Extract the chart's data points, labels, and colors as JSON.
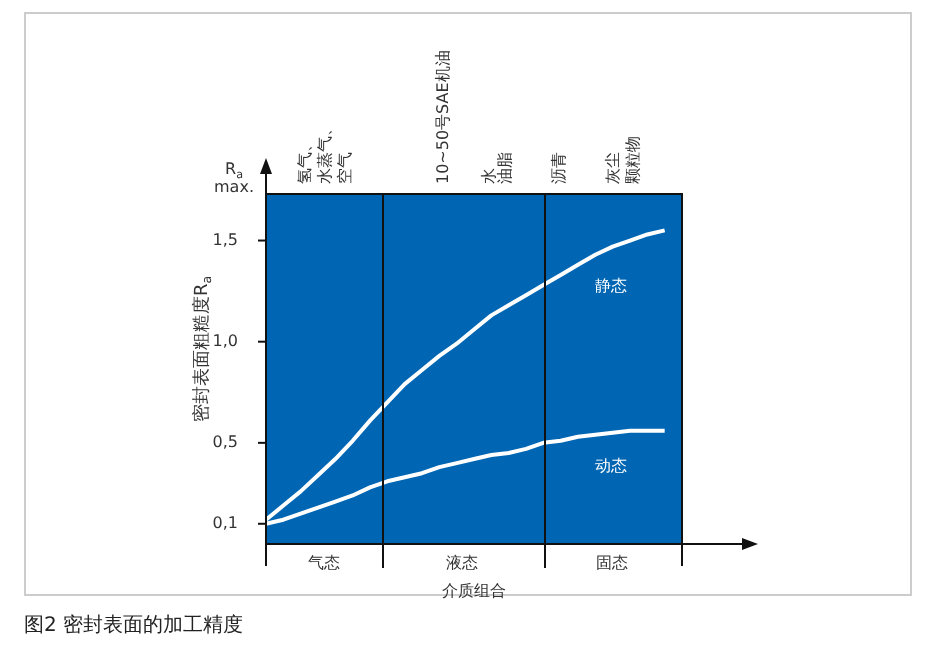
{
  "chart_data": {
    "type": "line",
    "title": "图2 密封表面的加工精度",
    "xlabel": "介质组合",
    "ylabel": "密封表面粗糙度R$_{a}$",
    "annotations": [
      "R$_{a}$ max.",
      "氢气、",
      "水蒸气、",
      "空气",
      "10~50号SAE机油",
      "水",
      "油脂",
      "沥青",
      "灰尘",
      "颗粒物",
      "气态",
      "液态",
      "固态"
    ],
    "categories": [
      null,
      null,
      null,
      null,
      null,
      null,
      null,
      null,
      null,
      null,
      null,
      null,
      null,
      null,
      null,
      null,
      null,
      null,
      null,
      null,
      null,
      null,
      null,
      null,
      null
    ],
    "ylim": [
      0,
      1.73
    ],
    "yticks": [
      {
        "value": 0.1,
        "label": "0,1"
      },
      {
        "value": 0.5,
        "label": "0,5"
      },
      {
        "value": 1.0,
        "label": "1,0"
      },
      {
        "value": 1.5,
        "label": "1,5"
      }
    ],
    "tick_labels": "y",
    "legend": false,
    "marker": "none",
    "line_style": "solid",
    "series": [
      {
        "name": "静态",
        "color": "#ffffff",
        "values": [
          0.12,
          0.19,
          0.26,
          0.34,
          0.42,
          0.51,
          0.61,
          0.7,
          0.79,
          0.86,
          0.93,
          0.99,
          1.06,
          1.13,
          1.18,
          1.23,
          1.28,
          1.33,
          1.38,
          1.43,
          1.47,
          1.5,
          1.53,
          1.55,
          null
        ]
      },
      {
        "name": "动态",
        "color": "#ffffff",
        "values": [
          0.1,
          0.12,
          0.15,
          0.18,
          0.21,
          0.24,
          0.28,
          0.31,
          0.33,
          0.35,
          0.38,
          0.4,
          0.42,
          0.44,
          0.45,
          0.47,
          0.5,
          0.51,
          0.53,
          0.54,
          0.55,
          0.56,
          0.56,
          0.56,
          null
        ]
      }
    ]
  }
}
